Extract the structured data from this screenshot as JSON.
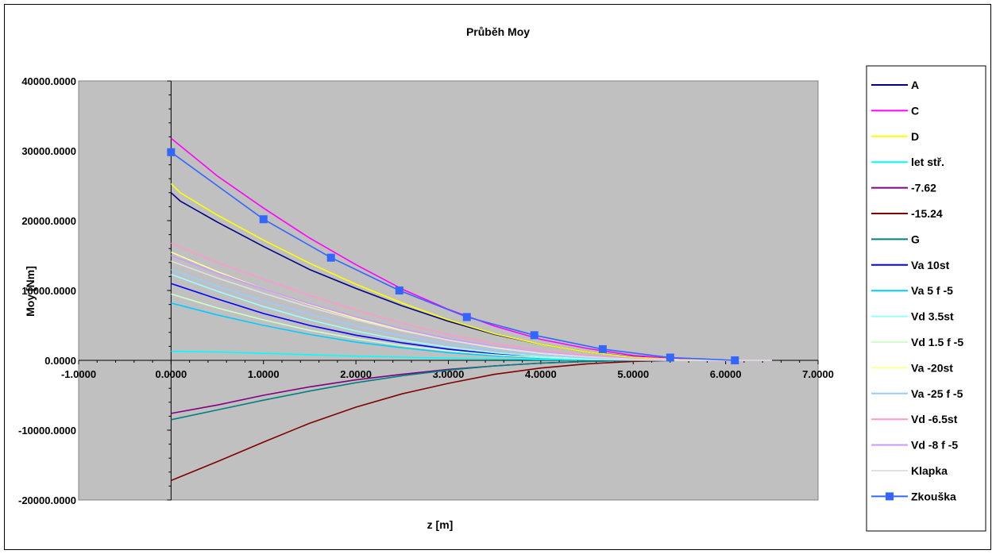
{
  "chart_data": {
    "type": "line",
    "title": "Průběh Moy",
    "xlabel": "z [m]",
    "ylabel": "Moy [Nm]",
    "xlim": [
      -1,
      7
    ],
    "ylim": [
      -20000,
      40000
    ],
    "x_ticks": [
      "-1.0000",
      "0.0000",
      "1.0000",
      "2.0000",
      "3.0000",
      "4.0000",
      "5.0000",
      "6.0000",
      "7.0000"
    ],
    "y_ticks": [
      "40000.0000",
      "30000.0000",
      "20000.0000",
      "10000.0000",
      "0.0000",
      "-10000.0000",
      "-20000.0000"
    ],
    "grid": false,
    "legend_position": "right",
    "plot_background": "#c0c0c0",
    "series": [
      {
        "name": "A",
        "color": "#000080",
        "x": [
          0,
          0.1,
          0.5,
          1,
          1.5,
          2,
          2.5,
          3,
          3.5,
          4,
          4.5,
          5,
          5.5,
          6,
          6.5
        ],
        "y": [
          24000,
          22800,
          19800,
          16300,
          13000,
          10300,
          7800,
          5600,
          3700,
          2300,
          1200,
          500,
          120,
          0,
          0
        ]
      },
      {
        "name": "C",
        "color": "#ff00ff",
        "x": [
          0,
          0.5,
          1,
          1.5,
          2,
          2.5,
          3,
          3.5,
          4,
          4.5,
          5,
          5.5,
          6,
          6.5
        ],
        "y": [
          31800,
          26400,
          21800,
          17500,
          13700,
          10200,
          7300,
          4900,
          3000,
          1700,
          700,
          200,
          0,
          0
        ]
      },
      {
        "name": "D",
        "color": "#ffff00",
        "x": [
          0,
          0.1,
          0.5,
          1,
          1.5,
          2,
          2.5,
          3,
          3.5,
          4,
          4.5,
          5,
          5.5,
          6,
          6.5
        ],
        "y": [
          25300,
          24000,
          20800,
          17200,
          13900,
          10900,
          8200,
          5800,
          3800,
          2300,
          1200,
          450,
          100,
          0,
          0
        ]
      },
      {
        "name": "let stř.",
        "color": "#00ffff",
        "x": [
          0,
          0.5,
          1,
          2,
          3,
          4,
          5,
          5.5
        ],
        "y": [
          1300,
          1200,
          1000,
          600,
          300,
          100,
          0,
          0
        ]
      },
      {
        "name": "-7.62",
        "color": "#800080",
        "x": [
          0,
          0.5,
          1,
          1.5,
          2,
          2.5,
          3,
          3.5,
          4,
          4.5,
          5,
          5.5
        ],
        "y": [
          -7600,
          -6400,
          -5000,
          -3800,
          -2800,
          -2000,
          -1300,
          -800,
          -400,
          -150,
          0,
          0
        ]
      },
      {
        "name": "-15.24",
        "color": "#800000",
        "x": [
          0,
          0.5,
          1,
          1.5,
          2,
          2.5,
          3,
          3.5,
          4,
          4.5,
          5,
          5.5,
          5.7
        ],
        "y": [
          -17200,
          -14500,
          -11700,
          -9000,
          -6700,
          -4800,
          -3300,
          -2000,
          -1100,
          -500,
          -150,
          0,
          0
        ]
      },
      {
        "name": "G",
        "color": "#008080",
        "x": [
          0,
          0.5,
          1,
          1.5,
          2,
          2.5,
          3,
          3.5,
          4,
          4.5,
          5,
          5.5
        ],
        "y": [
          -8500,
          -7100,
          -5700,
          -4400,
          -3200,
          -2200,
          -1400,
          -800,
          -400,
          -150,
          0,
          0
        ]
      },
      {
        "name": "Va 10st",
        "color": "#0000ff",
        "x": [
          0,
          0.5,
          1,
          1.5,
          2,
          2.5,
          3,
          3.5,
          4,
          4.5,
          5,
          5.5,
          6
        ],
        "y": [
          11000,
          8800,
          6700,
          5000,
          3600,
          2500,
          1600,
          900,
          450,
          180,
          50,
          0,
          0
        ]
      },
      {
        "name": "Va 5 f -5",
        "color": "#00ccff",
        "x": [
          0,
          0.5,
          1,
          1.5,
          2,
          2.5,
          3,
          3.5,
          4,
          4.5,
          5,
          5.5,
          6
        ],
        "y": [
          8200,
          6500,
          5000,
          3700,
          2600,
          1800,
          1100,
          650,
          300,
          120,
          30,
          0,
          0
        ]
      },
      {
        "name": "Vd 3.5st",
        "color": "#99ffff",
        "x": [
          0,
          0.5,
          1,
          1.5,
          2,
          2.5,
          3,
          3.5,
          4,
          4.5,
          5,
          5.5,
          6
        ],
        "y": [
          12300,
          9900,
          7700,
          5800,
          4200,
          2900,
          1900,
          1100,
          550,
          220,
          60,
          0,
          0
        ]
      },
      {
        "name": "Vd 1.5 f -5",
        "color": "#ccffcc",
        "x": [
          0,
          0.5,
          1,
          1.5,
          2,
          2.5,
          3,
          3.5,
          4,
          4.5,
          5,
          5.5,
          6
        ],
        "y": [
          9500,
          7500,
          5800,
          4300,
          3100,
          2100,
          1350,
          800,
          400,
          160,
          40,
          0,
          0
        ]
      },
      {
        "name": "Va -20st",
        "color": "#ffff99",
        "x": [
          0,
          0.5,
          1,
          1.5,
          2,
          2.5,
          3,
          3.5,
          4,
          4.5,
          5,
          5.5,
          6,
          6.5
        ],
        "y": [
          15500,
          12700,
          10200,
          8000,
          6000,
          4300,
          2900,
          1800,
          1000,
          450,
          150,
          20,
          0,
          0
        ]
      },
      {
        "name": "Va -25 f -5",
        "color": "#99ccff",
        "x": [
          0,
          0.5,
          1,
          1.5,
          2,
          2.5,
          3,
          3.5,
          4,
          4.5,
          5,
          5.5,
          6,
          6.5
        ],
        "y": [
          13000,
          10600,
          8500,
          6600,
          4900,
          3500,
          2400,
          1500,
          800,
          350,
          100,
          10,
          0,
          0
        ]
      },
      {
        "name": "Vd -6.5st",
        "color": "#ff99cc",
        "x": [
          0,
          0.5,
          1,
          1.5,
          2,
          2.5,
          3,
          3.5,
          4,
          4.5,
          5,
          5.5,
          6,
          6.5
        ],
        "y": [
          16800,
          14000,
          11600,
          9300,
          7200,
          5300,
          3700,
          2400,
          1400,
          700,
          250,
          50,
          0,
          0
        ]
      },
      {
        "name": "Vd -8 f -5",
        "color": "#cc99ff",
        "x": [
          0,
          0.5,
          1,
          1.5,
          2,
          2.5,
          3,
          3.5,
          4,
          4.5,
          5,
          5.5,
          6,
          6.5
        ],
        "y": [
          15000,
          12500,
          10200,
          8100,
          6200,
          4500,
          3100,
          2000,
          1150,
          550,
          180,
          30,
          0,
          0
        ]
      },
      {
        "name": "Klapka",
        "color": "#e0e0e0",
        "x": [
          0,
          0.5,
          1,
          1.5,
          2,
          2.5,
          3,
          3.5,
          4,
          4.5,
          5,
          5.5,
          6,
          6.5
        ],
        "y": [
          14200,
          11800,
          9600,
          7600,
          5800,
          4200,
          2900,
          1850,
          1050,
          500,
          160,
          25,
          0,
          0
        ]
      },
      {
        "name": "Zkouška",
        "color": "#3366ff",
        "marker": "square",
        "x": [
          0,
          1,
          1.73,
          2.47,
          3.2,
          3.93,
          4.67,
          5.4,
          6.1
        ],
        "y": [
          29800,
          20200,
          14700,
          10000,
          6200,
          3600,
          1600,
          400,
          0
        ]
      }
    ]
  }
}
